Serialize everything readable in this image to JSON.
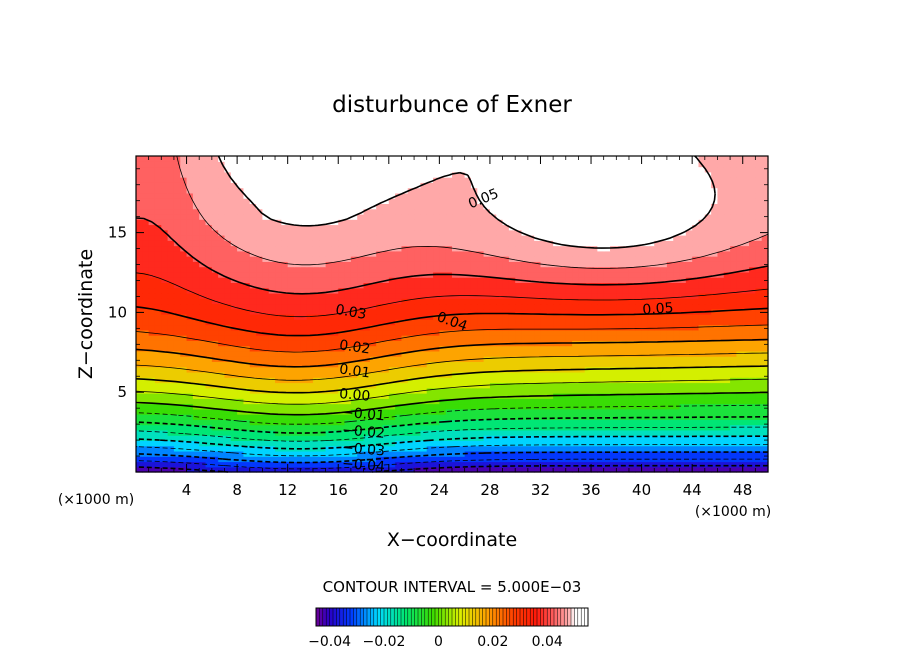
{
  "chart_data": {
    "type": "heatmap",
    "title": "disturbunce of Exner",
    "xlabel": "X−coordinate",
    "ylabel": "Z−coordinate",
    "x_unit": "(×1000 m)",
    "y_unit": "(×1000 m)",
    "xlim": [
      0,
      50
    ],
    "ylim": [
      0,
      19.8
    ],
    "x_ticks": [
      4,
      8,
      12,
      16,
      20,
      24,
      28,
      32,
      36,
      40,
      44,
      48
    ],
    "y_ticks": [
      5,
      10,
      15
    ],
    "x_tick_labels": [
      "4",
      "8",
      "12",
      "16",
      "20",
      "24",
      "28",
      "32",
      "36",
      "40",
      "44",
      "48"
    ],
    "y_tick_labels": [
      "5",
      "10",
      "15"
    ],
    "value_range": [
      -0.045,
      0.05
    ],
    "contour_interval": 0.005,
    "contour_interval_text": "CONTOUR INTERVAL = 5.000E−03",
    "colorbar_ticks": [
      -0.04,
      -0.02,
      0,
      0.02,
      0.04
    ],
    "colorbar_tick_labels": [
      "−0.04",
      "−0.02",
      "0",
      "0.02",
      "0.04"
    ],
    "contour_labels": [
      {
        "text": "0.05",
        "x": 27.5,
        "z": 17.1,
        "angle": -22
      },
      {
        "text": "0.05",
        "x": 41.3,
        "z": 10.2,
        "angle": -4
      },
      {
        "text": "0.04",
        "x": 25.0,
        "z": 9.4,
        "angle": 20
      },
      {
        "text": "0.03",
        "x": 17.0,
        "z": 10.0,
        "angle": 10
      },
      {
        "text": "0.02",
        "x": 17.3,
        "z": 7.8,
        "angle": 8
      },
      {
        "text": "0.01",
        "x": 17.3,
        "z": 6.3,
        "angle": 8
      },
      {
        "text": "0.00",
        "x": 17.3,
        "z": 4.8,
        "angle": 5
      },
      {
        "text": "−0.01",
        "x": 18.0,
        "z": 3.6,
        "angle": 5
      },
      {
        "text": "−0.02",
        "x": 18.0,
        "z": 2.5,
        "angle": 5
      },
      {
        "text": "−0.03",
        "x": 18.0,
        "z": 1.4,
        "angle": 5
      },
      {
        "text": "−0.04",
        "x": 18.0,
        "z": 0.4,
        "angle": 5
      }
    ]
  }
}
